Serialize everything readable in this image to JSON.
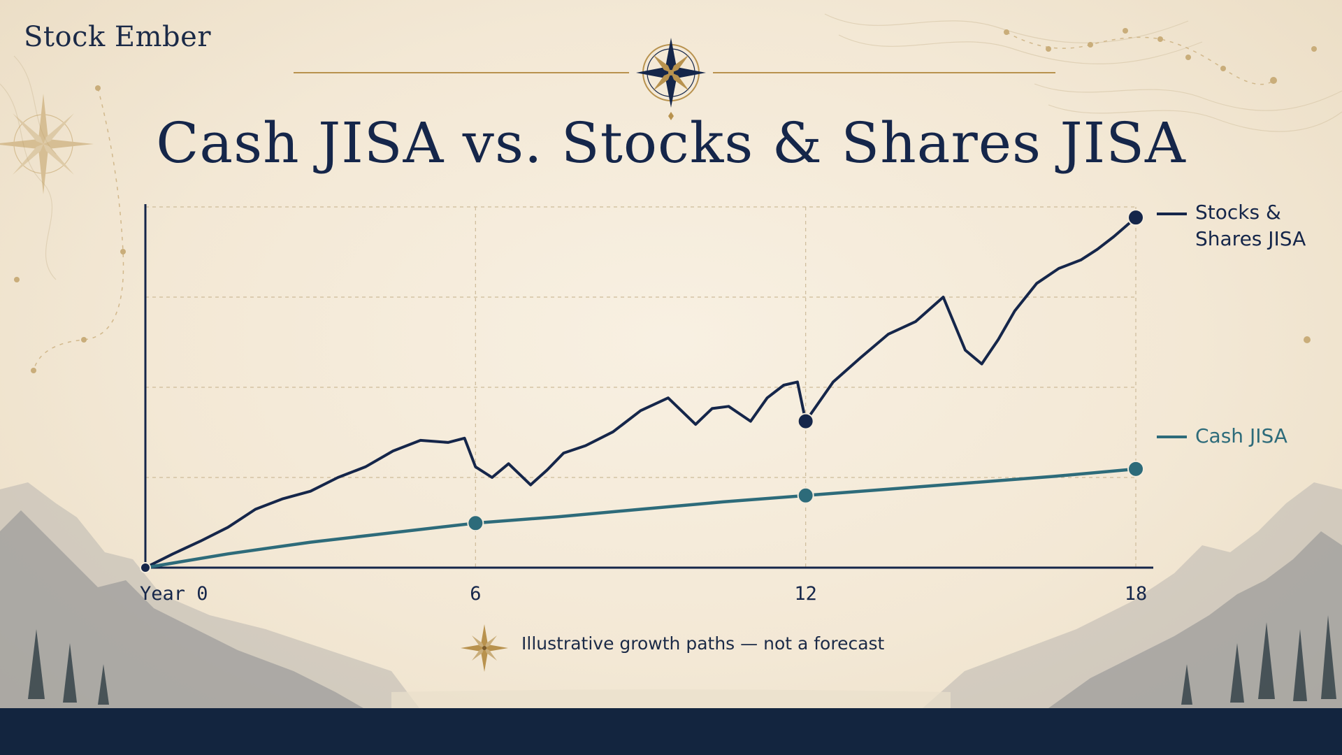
{
  "brand": {
    "name": "Stock Ember"
  },
  "title": "Cash JISA vs. Stocks & Shares JISA",
  "footnote": "Illustrative growth paths — not a forecast",
  "colors": {
    "stocks": "#15264a",
    "cash": "#2d6b7a",
    "accent_gold": "#b8924e",
    "background": "#f5ecdc",
    "band": "#13253f"
  },
  "icons": [
    "compass-rose-icon",
    "compass-star-icon"
  ],
  "chart_data": {
    "type": "line",
    "grid": true,
    "legend_position": "right",
    "xlim": [
      0,
      18
    ],
    "ylim": [
      0,
      3.4
    ],
    "x_ticks": [
      0,
      6,
      12,
      18
    ],
    "x_tick_labels": [
      "Year 0",
      "6",
      "12",
      "18"
    ],
    "series": [
      {
        "name": "Stocks & Shares JISA",
        "legend_lines": [
          "Stocks &",
          "Shares JISA"
        ],
        "color": "#15264a",
        "x": [
          0,
          0.5,
          1,
          1.5,
          2,
          2.5,
          3,
          3.5,
          4,
          4.5,
          5,
          5.5,
          5.8,
          6,
          6.3,
          6.6,
          7,
          7.3,
          7.6,
          8,
          8.5,
          9,
          9.5,
          10,
          10.3,
          10.6,
          11,
          11.3,
          11.6,
          11.85,
          12,
          12.5,
          13,
          13.5,
          14,
          14.5,
          14.9,
          15.2,
          15.5,
          15.8,
          16.2,
          16.6,
          17,
          17.3,
          17.6,
          18
        ],
        "y": [
          0,
          0.13,
          0.25,
          0.38,
          0.55,
          0.65,
          0.72,
          0.85,
          0.95,
          1.1,
          1.2,
          1.18,
          1.22,
          0.95,
          0.85,
          0.98,
          0.78,
          0.92,
          1.08,
          1.15,
          1.28,
          1.48,
          1.6,
          1.35,
          1.5,
          1.52,
          1.38,
          1.6,
          1.72,
          1.75,
          1.38,
          1.75,
          1.98,
          2.2,
          2.32,
          2.55,
          2.05,
          1.92,
          2.15,
          2.42,
          2.68,
          2.82,
          2.9,
          3.0,
          3.12,
          3.3
        ]
      },
      {
        "name": "Cash JISA",
        "legend_lines": [
          "Cash JISA"
        ],
        "color": "#2d6b7a",
        "x": [
          0,
          1.5,
          3,
          4.5,
          6,
          7.5,
          9,
          10.5,
          12,
          13.5,
          15,
          16.5,
          18
        ],
        "y": [
          0,
          0.13,
          0.24,
          0.33,
          0.42,
          0.48,
          0.55,
          0.62,
          0.68,
          0.74,
          0.8,
          0.86,
          0.93
        ]
      }
    ],
    "markers": [
      {
        "series": 0,
        "x": [
          0,
          12,
          18
        ]
      },
      {
        "series": 1,
        "x": [
          6,
          12,
          18
        ]
      }
    ]
  }
}
